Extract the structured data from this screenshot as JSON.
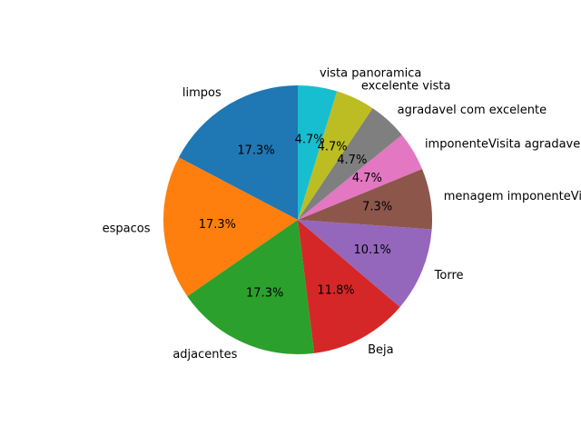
{
  "chart_data": {
    "type": "pie",
    "title": "",
    "start_angle_deg": 90,
    "direction": "counterclockwise",
    "categories": [
      "limpos",
      "espacos",
      "adjacentes",
      "Beja",
      "Torre",
      "menagem imponenteVisita",
      "imponenteVisita agradavel",
      "agradavel com excelente",
      "excelente vista",
      "vista panoramica"
    ],
    "values": [
      17.3,
      17.3,
      17.3,
      11.8,
      10.1,
      7.3,
      4.7,
      4.7,
      4.7,
      4.7
    ],
    "percent_labels": [
      "17.3%",
      "17.3%",
      "17.3%",
      "11.8%",
      "10.1%",
      "7.3%",
      "4.7%",
      "4.7%",
      "4.7%",
      "4.7%"
    ],
    "colors": [
      "#1f77b4",
      "#ff7f0e",
      "#2ca02c",
      "#d62728",
      "#9467bd",
      "#8c564b",
      "#e377c2",
      "#7f7f7f",
      "#bcbd22",
      "#17becf"
    ]
  }
}
